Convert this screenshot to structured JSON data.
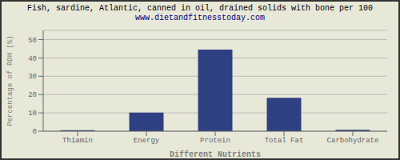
{
  "chart_data": {
    "type": "bar",
    "title": "Fish, sardine, Atlantic, canned in oil, drained solids with bone per 100",
    "subtitle": "www.dietandfitnesstoday.com",
    "categories": [
      "Thiamin",
      "Energy",
      "Protein",
      "Total Fat",
      "Carbohydrate"
    ],
    "values": [
      0.5,
      10.2,
      44.5,
      18.2,
      0.8
    ],
    "color": "#2e4082",
    "ylabel": "Percentage of RDH (%)",
    "xlabel": "Different Nutrients",
    "ylim": [
      0,
      55
    ],
    "yticks": [
      0,
      10,
      20,
      30,
      40,
      50
    ],
    "grid": true
  }
}
